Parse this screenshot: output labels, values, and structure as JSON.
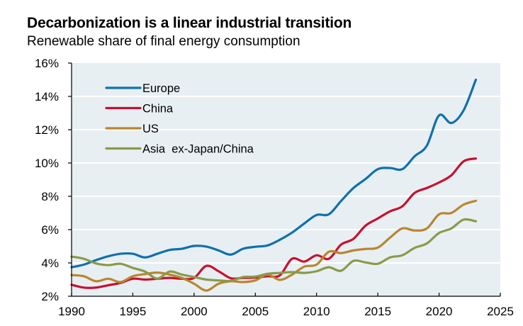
{
  "chart_data": {
    "type": "line",
    "title": "Decarbonization is a linear industrial transition",
    "subtitle": "Renewable share of final energy consumption",
    "xlabel": "",
    "ylabel": "",
    "xlim": [
      1990,
      2025
    ],
    "ylim": [
      2,
      16
    ],
    "x_ticks": [
      1990,
      1995,
      2000,
      2005,
      2010,
      2015,
      2020,
      2025
    ],
    "x_tick_labels": [
      "1990",
      "1995",
      "2000",
      "2005",
      "2010",
      "2015",
      "2020",
      "2025"
    ],
    "y_ticks": [
      2,
      4,
      6,
      8,
      10,
      12,
      14,
      16
    ],
    "y_tick_labels": [
      "2%",
      "4%",
      "6%",
      "8%",
      "10%",
      "12%",
      "14%",
      "16%"
    ],
    "grid": "horizontal",
    "legend_position": "top-left",
    "background": "#E7EFF3",
    "x": [
      1990,
      1991,
      1992,
      1993,
      1994,
      1995,
      1996,
      1997,
      1998,
      1999,
      2000,
      2001,
      2002,
      2003,
      2004,
      2005,
      2006,
      2007,
      2008,
      2009,
      2010,
      2011,
      2012,
      2013,
      2014,
      2015,
      2016,
      2017,
      2018,
      2019,
      2020,
      2021,
      2022,
      2023
    ],
    "series": [
      {
        "name": "Europe",
        "color": "#1170AA",
        "values": [
          3.74,
          3.9,
          4.17,
          4.4,
          4.55,
          4.55,
          4.33,
          4.55,
          4.78,
          4.85,
          5.02,
          4.98,
          4.75,
          4.5,
          4.85,
          4.97,
          5.05,
          5.39,
          5.82,
          6.37,
          6.88,
          6.92,
          7.72,
          8.49,
          9.04,
          9.63,
          9.7,
          9.63,
          10.4,
          11.04,
          12.86,
          12.4,
          13.16,
          15.0
        ]
      },
      {
        "name": "China",
        "color": "#C8102E",
        "values": [
          2.69,
          2.52,
          2.52,
          2.66,
          2.8,
          3.05,
          3.0,
          3.05,
          3.1,
          3.05,
          3.1,
          3.82,
          3.5,
          3.08,
          3.1,
          3.12,
          3.2,
          3.25,
          4.25,
          4.08,
          4.46,
          4.25,
          5.1,
          5.44,
          6.24,
          6.67,
          7.1,
          7.4,
          8.2,
          8.5,
          8.83,
          9.26,
          10.1,
          10.27
        ]
      },
      {
        "name": "US",
        "color": "#B8862E",
        "values": [
          3.27,
          3.2,
          2.9,
          3.05,
          2.85,
          3.2,
          3.33,
          3.42,
          3.3,
          3.1,
          2.75,
          2.34,
          2.75,
          2.9,
          2.85,
          2.95,
          3.3,
          2.98,
          3.3,
          3.78,
          3.9,
          4.67,
          4.59,
          4.75,
          4.84,
          4.92,
          5.52,
          6.07,
          5.95,
          6.07,
          6.92,
          7.0,
          7.5,
          7.73
        ]
      },
      {
        "name": "Asia  ex-Japan/China",
        "color": "#8A9A48",
        "values": [
          4.38,
          4.25,
          3.97,
          3.87,
          3.95,
          3.7,
          3.48,
          3.06,
          3.48,
          3.3,
          3.15,
          3.0,
          2.95,
          2.92,
          3.15,
          3.18,
          3.35,
          3.4,
          3.45,
          3.4,
          3.5,
          3.74,
          3.53,
          4.12,
          4.03,
          3.95,
          4.33,
          4.46,
          4.9,
          5.17,
          5.8,
          6.07,
          6.6,
          6.5
        ]
      }
    ]
  }
}
